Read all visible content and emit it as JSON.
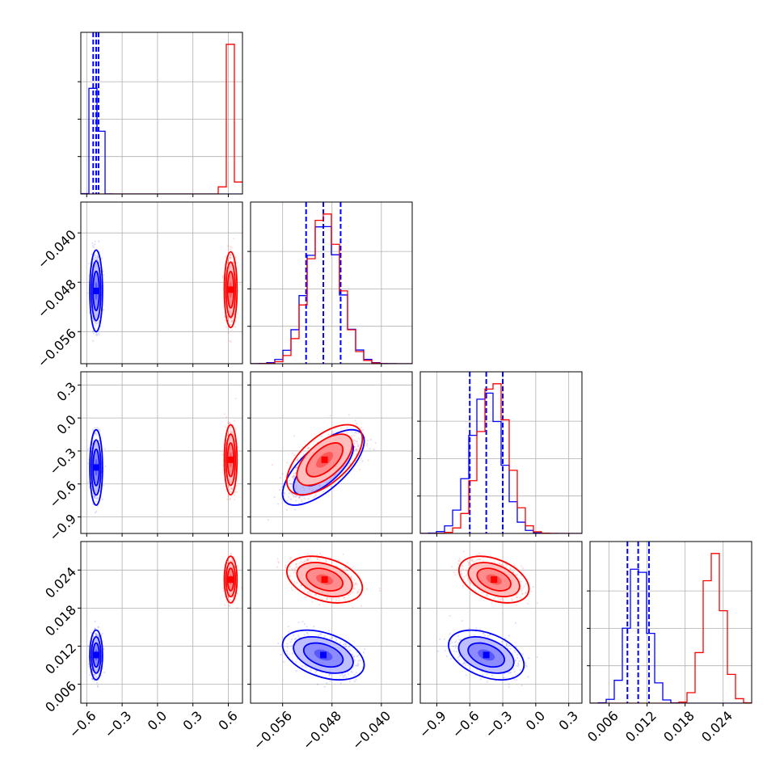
{
  "chart_data": {
    "type": "corner",
    "n_params": 4,
    "grid": true,
    "colors": {
      "blue": "#0000ff",
      "red": "#ff0000",
      "grid": "#b0b0b0",
      "axes": "#000000"
    },
    "params": [
      {
        "range": [
          -0.65,
          0.72
        ],
        "ticks": [
          -0.6,
          -0.3,
          0.0,
          0.3,
          0.6
        ],
        "tick_labels": [
          "−0.6",
          "−0.3",
          "0.0",
          "0.3",
          "0.6"
        ]
      },
      {
        "range": [
          -0.0612,
          -0.035
        ],
        "ticks": [
          -0.056,
          -0.048,
          -0.04
        ],
        "tick_labels": [
          "−0.056",
          "−0.048",
          "−0.040"
        ]
      },
      {
        "range": [
          -1.05,
          0.42
        ],
        "ticks": [
          -0.9,
          -0.6,
          -0.3,
          0.0,
          0.3
        ],
        "tick_labels": [
          "−0.9",
          "−0.6",
          "−0.3",
          "0.0",
          "0.3"
        ]
      },
      {
        "range": [
          0.003,
          0.0285
        ],
        "ticks": [
          0.006,
          0.012,
          0.018,
          0.024
        ],
        "tick_labels": [
          "0.006",
          "0.012",
          "0.018",
          "0.024"
        ]
      }
    ],
    "series": [
      {
        "color": "#0000ff",
        "mean": [
          -0.52,
          -0.0494,
          -0.45,
          0.0106
        ],
        "sd": [
          0.022,
          0.0027,
          0.14,
          0.0016
        ],
        "corr": {
          "1-2": 0.7,
          "1-3": -0.4,
          "2-3": -0.4
        },
        "quantiles": [
          [
            -0.545,
            -0.52,
            -0.5
          ],
          [
            -0.0522,
            -0.0494,
            -0.0466
          ],
          [
            -0.6,
            -0.45,
            -0.3
          ],
          [
            0.0089,
            0.0106,
            0.0123
          ]
        ]
      },
      {
        "color": "#ff0000",
        "mean": [
          0.62,
          -0.0492,
          -0.38,
          0.0225
        ],
        "sd": [
          0.022,
          0.0025,
          0.13,
          0.0015
        ],
        "corr": {
          "1-2": 0.6,
          "1-3": -0.35,
          "2-3": -0.4
        },
        "quantiles": []
      }
    ]
  }
}
